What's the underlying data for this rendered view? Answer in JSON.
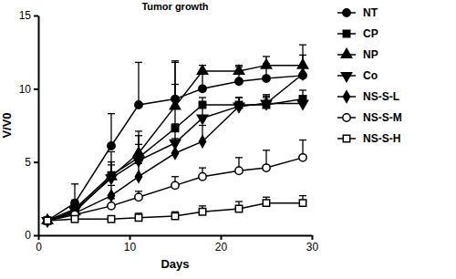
{
  "chart_data": {
    "type": "line",
    "title": "Tumor growth",
    "x_label": "Days",
    "y_label": "V/V0",
    "x": [
      1,
      4,
      8,
      11,
      15,
      18,
      22,
      25,
      29
    ],
    "xlim": [
      0,
      30
    ],
    "xticks": [
      0,
      10,
      20,
      30
    ],
    "ylim": [
      0,
      15
    ],
    "yticks": [
      0,
      5,
      10,
      15
    ],
    "grid": false,
    "legend": "right",
    "series": [
      {
        "name": "NT",
        "color": "#000000",
        "marker": "circle",
        "values": [
          1,
          2.2,
          6.1,
          8.9,
          9.3,
          10.0,
          10.5,
          10.7,
          10.9
        ],
        "errors": [
          0,
          1.3,
          2.2,
          2.9,
          2.5,
          1.2,
          1.0,
          1.0,
          2.1
        ]
      },
      {
        "name": "CP",
        "color": "#000000",
        "marker": "square",
        "values": [
          1,
          1.8,
          4.1,
          5.3,
          7.3,
          8.9,
          8.9,
          8.9,
          9.3
        ],
        "errors": [
          0,
          0.6,
          1.6,
          1.8,
          4.6,
          0.5,
          0.5,
          0.5,
          0.6
        ]
      },
      {
        "name": "NP",
        "color": "#000000",
        "marker": "triangle",
        "values": [
          1,
          1.6,
          4.0,
          5.6,
          8.8,
          11.2,
          11.2,
          11.6,
          11.6
        ],
        "errors": [
          0,
          0.5,
          1.0,
          1.2,
          1.5,
          0.4,
          0.4,
          0.6,
          0.7
        ]
      },
      {
        "name": "Co",
        "color": "#000000",
        "marker": "triangle-down",
        "values": [
          1,
          1.7,
          3.9,
          5.1,
          6.3,
          8.0,
          8.8,
          9.0,
          9.0
        ],
        "errors": [
          0,
          0.5,
          0.9,
          1.1,
          1.3,
          1.0,
          0.6,
          0.5,
          0.5
        ]
      },
      {
        "name": "NS-S-L",
        "color": "#000000",
        "marker": "diamond",
        "values": [
          1,
          1.5,
          2.7,
          4.0,
          5.6,
          6.4,
          8.8,
          9.0,
          11.0
        ],
        "errors": [
          0,
          0.4,
          0.7,
          0.9,
          1.0,
          1.1,
          0.6,
          0.6,
          0.6
        ]
      },
      {
        "name": "NS-S-M",
        "color": "#000000",
        "marker": "circle-open",
        "values": [
          1,
          1.4,
          2.0,
          2.6,
          3.4,
          4.0,
          4.4,
          4.6,
          5.3
        ],
        "errors": [
          0,
          0.3,
          0.5,
          0.4,
          0.6,
          0.6,
          0.9,
          1.2,
          1.2
        ]
      },
      {
        "name": "NS-S-H",
        "color": "#000000",
        "marker": "square-open",
        "values": [
          1,
          1.1,
          1.1,
          1.2,
          1.3,
          1.6,
          1.8,
          2.2,
          2.2
        ],
        "errors": [
          0,
          0.1,
          0.2,
          0.3,
          0.3,
          0.4,
          0.5,
          0.4,
          0.5
        ]
      }
    ]
  }
}
